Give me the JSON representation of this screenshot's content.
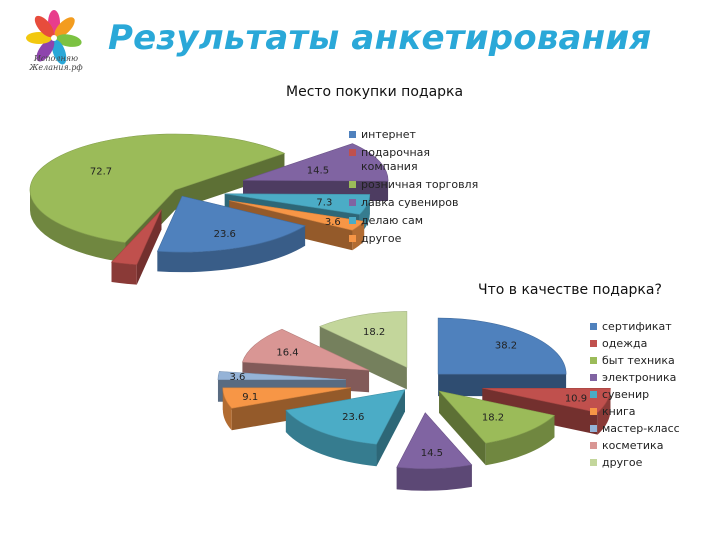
{
  "header": {
    "title": "Результаты анкетирования",
    "logo_text": "Исполняю Желания.рф"
  },
  "chart_data": [
    {
      "type": "pie",
      "title": "Место покупки подарка",
      "three_d": true,
      "exploded": true,
      "legend_position": "right",
      "categories": [
        "интернет",
        "подарочная компания",
        "розничная торговля",
        "лавка сувениров",
        "делаю сам",
        "другое"
      ],
      "values": [
        23.6,
        3.6,
        72.7,
        14.5,
        7.3,
        3.6
      ],
      "data_labels": [
        "23.6",
        "",
        "72.7",
        "14.5",
        "7.3",
        "3.6"
      ],
      "colors": [
        "#4f81bd",
        "#c0504d",
        "#9bbb59",
        "#8064a2",
        "#4bacc6",
        "#f79646"
      ]
    },
    {
      "type": "pie",
      "title": "Что в качестве подарка?",
      "three_d": true,
      "exploded": true,
      "legend_position": "right",
      "categories": [
        "сертификат",
        "одежда",
        "быт техника",
        "электроника",
        "сувенир",
        "книга",
        "мастер-класс",
        "косметика",
        "другое"
      ],
      "values": [
        38.2,
        10.9,
        18.2,
        14.5,
        23.6,
        9.1,
        3.6,
        16.4,
        18.2
      ],
      "data_labels": [
        "38.2",
        "10.9",
        "18.2",
        "14.5",
        "23.6",
        "9.1",
        "3.6",
        "16.4",
        "18.2"
      ],
      "colors": [
        "#4f81bd",
        "#c0504d",
        "#9bbb59",
        "#8064a2",
        "#4bacc6",
        "#f79646",
        "#95b3d7",
        "#d99694",
        "#c3d69b"
      ]
    }
  ]
}
